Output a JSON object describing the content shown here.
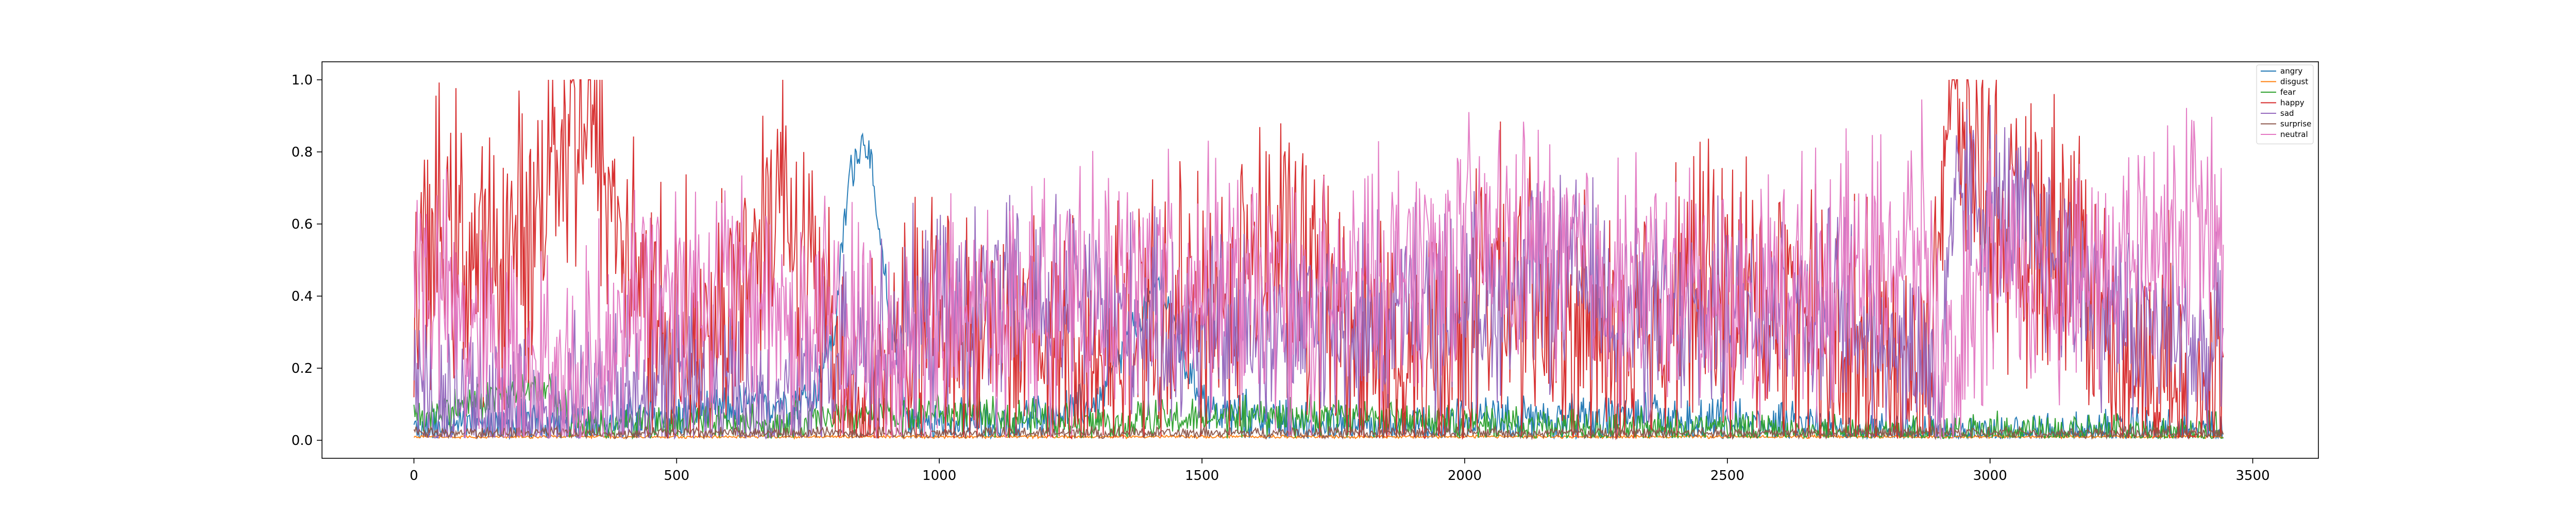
{
  "chart_data": {
    "type": "line",
    "title": "",
    "xlabel": "",
    "ylabel": "",
    "xlim": [
      -175,
      3625
    ],
    "ylim": [
      -0.05,
      1.05
    ],
    "xticks": [
      0,
      500,
      1000,
      1500,
      2000,
      2500,
      3000,
      3500
    ],
    "yticks": [
      0.0,
      0.2,
      0.4,
      0.6,
      0.8,
      1.0
    ],
    "xtick_labels": [
      "0",
      "500",
      "1000",
      "1500",
      "2000",
      "2500",
      "3000",
      "3500"
    ],
    "ytick_labels": [
      "0.0",
      "0.2",
      "0.4",
      "0.6",
      "0.8",
      "1.0"
    ],
    "n_points": 3446,
    "grid": false,
    "legend_position": "top-right",
    "series": [
      {
        "name": "angry",
        "color": "#1f77b4",
        "segments": [
          [
            0,
            0.03
          ],
          [
            100,
            0.04
          ],
          [
            400,
            0.05
          ],
          [
            560,
            0.08
          ],
          [
            760,
            0.12
          ],
          [
            800,
            0.3
          ],
          [
            830,
            0.75
          ],
          [
            860,
            0.85
          ],
          [
            900,
            0.4
          ],
          [
            940,
            0.05
          ],
          [
            1100,
            0.04
          ],
          [
            1300,
            0.1
          ],
          [
            1420,
            0.45
          ],
          [
            1470,
            0.2
          ],
          [
            1520,
            0.08
          ],
          [
            1800,
            0.03
          ],
          [
            2000,
            0.05
          ],
          [
            2350,
            0.06
          ],
          [
            2800,
            0.02
          ],
          [
            3050,
            0.01
          ],
          [
            3446,
            0.02
          ]
        ],
        "jitter": 0.06
      },
      {
        "name": "disgust",
        "color": "#ff7f0e",
        "segments": [
          [
            0,
            0.01
          ],
          [
            3446,
            0.01
          ]
        ],
        "jitter": 0.004
      },
      {
        "name": "fear",
        "color": "#2ca02c",
        "segments": [
          [
            0,
            0.06
          ],
          [
            150,
            0.12
          ],
          [
            260,
            0.15
          ],
          [
            300,
            0.04
          ],
          [
            700,
            0.05
          ],
          [
            1000,
            0.08
          ],
          [
            1250,
            0.05
          ],
          [
            1800,
            0.07
          ],
          [
            2200,
            0.03
          ],
          [
            2600,
            0.03
          ],
          [
            2900,
            0.02
          ],
          [
            3446,
            0.02
          ]
        ],
        "jitter": 0.05
      },
      {
        "name": "happy",
        "color": "#d62728",
        "segments": [
          [
            0,
            0.4
          ],
          [
            60,
            0.6
          ],
          [
            140,
            0.45
          ],
          [
            230,
            0.6
          ],
          [
            260,
            0.85
          ],
          [
            330,
            0.9
          ],
          [
            400,
            0.55
          ],
          [
            480,
            0.3
          ],
          [
            600,
            0.35
          ],
          [
            700,
            0.75
          ],
          [
            780,
            0.3
          ],
          [
            850,
            0.05
          ],
          [
            950,
            0.3
          ],
          [
            1100,
            0.35
          ],
          [
            1250,
            0.2
          ],
          [
            1500,
            0.35
          ],
          [
            1650,
            0.55
          ],
          [
            1800,
            0.25
          ],
          [
            1950,
            0.2
          ],
          [
            2050,
            0.45
          ],
          [
            2150,
            0.3
          ],
          [
            2300,
            0.25
          ],
          [
            2450,
            0.45
          ],
          [
            2600,
            0.35
          ],
          [
            2750,
            0.25
          ],
          [
            2880,
            0.2
          ],
          [
            2920,
            0.95
          ],
          [
            2960,
            0.85
          ],
          [
            3050,
            0.5
          ],
          [
            3150,
            0.6
          ],
          [
            3250,
            0.2
          ],
          [
            3446,
            0.15
          ]
        ],
        "jitter": 0.35
      },
      {
        "name": "sad",
        "color": "#9467bd",
        "segments": [
          [
            0,
            0.1
          ],
          [
            300,
            0.08
          ],
          [
            560,
            0.15
          ],
          [
            720,
            0.1
          ],
          [
            900,
            0.3
          ],
          [
            1200,
            0.4
          ],
          [
            1450,
            0.3
          ],
          [
            1700,
            0.3
          ],
          [
            1900,
            0.35
          ],
          [
            2200,
            0.45
          ],
          [
            2400,
            0.3
          ],
          [
            2600,
            0.4
          ],
          [
            2800,
            0.3
          ],
          [
            2890,
            0.2
          ],
          [
            2900,
            0.05
          ],
          [
            2940,
            0.7
          ],
          [
            3050,
            0.6
          ],
          [
            3200,
            0.4
          ],
          [
            3300,
            0.3
          ],
          [
            3446,
            0.25
          ]
        ],
        "jitter": 0.25
      },
      {
        "name": "surprise",
        "color": "#8c564b",
        "segments": [
          [
            0,
            0.02
          ],
          [
            3446,
            0.02
          ]
        ],
        "jitter": 0.015
      },
      {
        "name": "neutral",
        "color": "#e377c2",
        "segments": [
          [
            0,
            0.5
          ],
          [
            100,
            0.3
          ],
          [
            300,
            0.15
          ],
          [
            450,
            0.45
          ],
          [
            650,
            0.4
          ],
          [
            900,
            0.25
          ],
          [
            1100,
            0.35
          ],
          [
            1300,
            0.4
          ],
          [
            1500,
            0.45
          ],
          [
            1700,
            0.35
          ],
          [
            1900,
            0.5
          ],
          [
            2100,
            0.55
          ],
          [
            2300,
            0.45
          ],
          [
            2500,
            0.4
          ],
          [
            2700,
            0.45
          ],
          [
            2880,
            0.55
          ],
          [
            2910,
            0.1
          ],
          [
            3000,
            0.45
          ],
          [
            3200,
            0.45
          ],
          [
            3350,
            0.6
          ],
          [
            3446,
            0.55
          ]
        ],
        "jitter": 0.3
      }
    ]
  }
}
